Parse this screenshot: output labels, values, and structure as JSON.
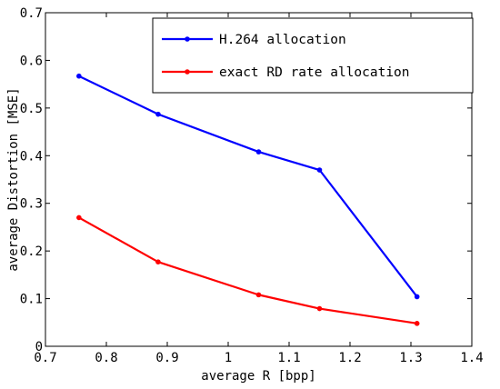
{
  "chart_data": {
    "type": "line",
    "xlabel": "average R [bpp]",
    "ylabel": "average Distortion [MSE]",
    "xlim": [
      0.7,
      1.4
    ],
    "ylim": [
      0,
      0.7
    ],
    "xticks": [
      0.7,
      0.8,
      0.9,
      1,
      1.1,
      1.2,
      1.3,
      1.4
    ],
    "yticks": [
      0,
      0.1,
      0.2,
      0.3,
      0.4,
      0.5,
      0.6,
      0.7
    ],
    "xtick_labels": [
      "0.7",
      "0.8",
      "0.9",
      "1",
      "1.1",
      "1.2",
      "1.3",
      "1.4"
    ],
    "ytick_labels": [
      "0",
      "0.1",
      "0.2",
      "0.3",
      "0.4",
      "0.5",
      "0.6",
      "0.7"
    ],
    "grid": false,
    "legend_position": "top-right",
    "series": [
      {
        "name": "H.264 allocation",
        "color": "#0000ff",
        "x": [
          0.755,
          0.885,
          1.05,
          1.15,
          1.31
        ],
        "y": [
          0.567,
          0.487,
          0.408,
          0.37,
          0.104
        ]
      },
      {
        "name": "exact RD rate allocation",
        "color": "#ff0000",
        "x": [
          0.755,
          0.885,
          1.05,
          1.15,
          1.31
        ],
        "y": [
          0.27,
          0.177,
          0.108,
          0.079,
          0.048
        ]
      }
    ]
  }
}
